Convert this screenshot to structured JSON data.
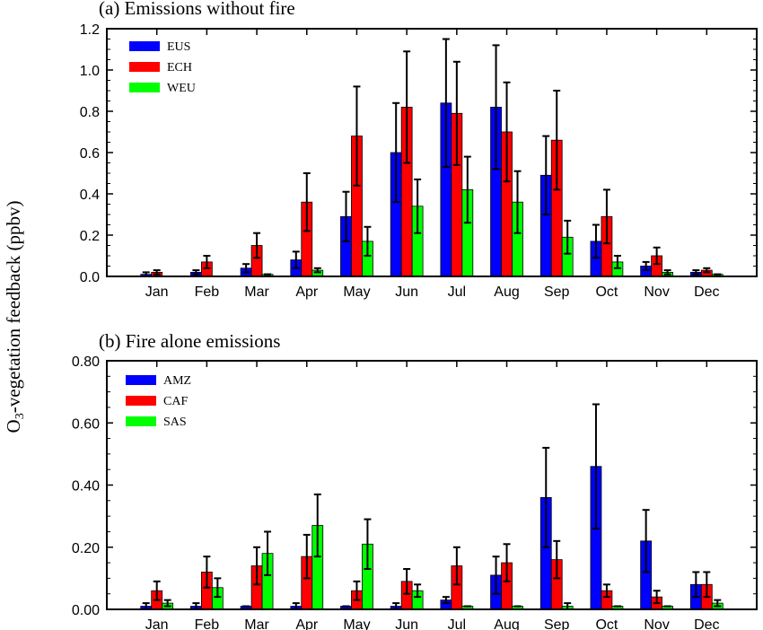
{
  "y_axis_label": {
    "main": "O",
    "sub": "3",
    "rest": "-vegetation feedback (ppbv)"
  },
  "chart_data": [
    {
      "type": "bar",
      "title": "(a) Emissions without fire",
      "categories": [
        "Jan",
        "Feb",
        "Mar",
        "Apr",
        "May",
        "Jun",
        "Jul",
        "Aug",
        "Sep",
        "Oct",
        "Nov",
        "Dec"
      ],
      "ylim": [
        0,
        1.2
      ],
      "yticks": [
        "0.0",
        "0.2",
        "0.4",
        "0.6",
        "0.8",
        "1.0",
        "1.2"
      ],
      "legend_position": "top-left",
      "grid": false,
      "series": [
        {
          "name": "EUS",
          "color": "#0000ff",
          "values": [
            0.01,
            0.02,
            0.04,
            0.08,
            0.29,
            0.6,
            0.84,
            0.82,
            0.49,
            0.17,
            0.05,
            0.02
          ],
          "errors": [
            0.01,
            0.01,
            0.02,
            0.04,
            0.12,
            0.24,
            0.31,
            0.3,
            0.19,
            0.08,
            0.02,
            0.01
          ]
        },
        {
          "name": "ECH",
          "color": "#ff0000",
          "values": [
            0.02,
            0.07,
            0.15,
            0.36,
            0.68,
            0.82,
            0.79,
            0.7,
            0.66,
            0.29,
            0.1,
            0.03
          ],
          "errors": [
            0.01,
            0.03,
            0.06,
            0.14,
            0.24,
            0.27,
            0.25,
            0.24,
            0.24,
            0.13,
            0.04,
            0.01
          ]
        },
        {
          "name": "WEU",
          "color": "#00ff00",
          "values": [
            0.0,
            0.0,
            0.01,
            0.03,
            0.17,
            0.34,
            0.42,
            0.36,
            0.19,
            0.07,
            0.02,
            0.01
          ],
          "errors": [
            0.0,
            0.0,
            0.0,
            0.01,
            0.07,
            0.13,
            0.16,
            0.15,
            0.08,
            0.03,
            0.01,
            0.0
          ]
        }
      ]
    },
    {
      "type": "bar",
      "title": "(b) Fire alone emissions",
      "categories": [
        "Jan",
        "Feb",
        "Mar",
        "Apr",
        "May",
        "Jun",
        "Jul",
        "Aug",
        "Sep",
        "Oct",
        "Nov",
        "Dec"
      ],
      "ylim": [
        0,
        0.8
      ],
      "yticks": [
        "0.00",
        "0.20",
        "0.40",
        "0.60",
        "0.80"
      ],
      "legend_position": "top-left",
      "grid": false,
      "series": [
        {
          "name": "AMZ",
          "color": "#0000ff",
          "values": [
            0.01,
            0.01,
            0.01,
            0.01,
            0.01,
            0.01,
            0.03,
            0.11,
            0.36,
            0.46,
            0.22,
            0.08
          ],
          "errors": [
            0.01,
            0.01,
            0.0,
            0.01,
            0.0,
            0.01,
            0.01,
            0.06,
            0.16,
            0.2,
            0.1,
            0.04
          ]
        },
        {
          "name": "CAF",
          "color": "#ff0000",
          "values": [
            0.06,
            0.12,
            0.14,
            0.17,
            0.06,
            0.09,
            0.14,
            0.15,
            0.16,
            0.06,
            0.04,
            0.08
          ],
          "errors": [
            0.03,
            0.05,
            0.06,
            0.07,
            0.03,
            0.04,
            0.06,
            0.06,
            0.06,
            0.02,
            0.02,
            0.04
          ]
        },
        {
          "name": "SAS",
          "color": "#00ff00",
          "values": [
            0.02,
            0.07,
            0.18,
            0.27,
            0.21,
            0.06,
            0.01,
            0.01,
            0.01,
            0.01,
            0.01,
            0.02
          ],
          "errors": [
            0.01,
            0.03,
            0.07,
            0.1,
            0.08,
            0.02,
            0.0,
            0.0,
            0.01,
            0.0,
            0.0,
            0.01
          ]
        }
      ]
    }
  ]
}
